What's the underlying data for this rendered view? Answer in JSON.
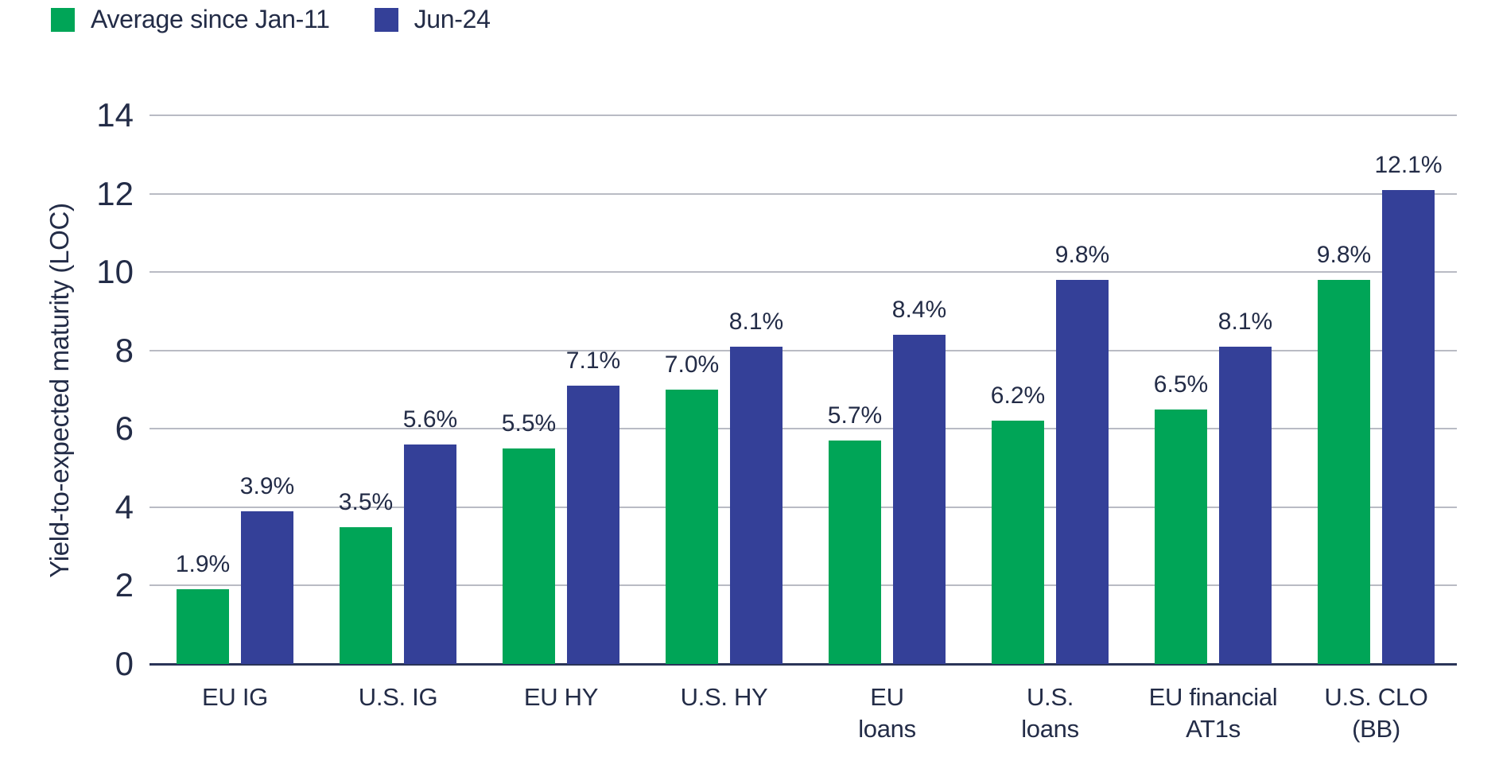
{
  "colors": {
    "series_green": "#00A557",
    "series_blue": "#344098",
    "text": "#232C47",
    "gridline": "#B9BBC4",
    "axis_baseline": "#2A3458",
    "background": "#FFFFFF"
  },
  "chart_data": {
    "type": "bar",
    "title": "",
    "xlabel": "",
    "ylabel": "Yield-to-expected maturity (LOC)",
    "ylim": [
      0,
      14
    ],
    "yticks": [
      0,
      2,
      4,
      6,
      8,
      10,
      12,
      14
    ],
    "grid": "horizontal",
    "legend_position": "top-left",
    "categories": [
      "EU IG",
      "U.S. IG",
      "EU HY",
      "U.S. HY",
      "EU\nloans",
      "U.S.\nloans",
      "EU financial\nAT1s",
      "U.S. CLO\n(BB)"
    ],
    "series": [
      {
        "name": "Average since Jan-11",
        "color": "#00A557",
        "values": [
          1.9,
          3.5,
          5.5,
          7.0,
          5.7,
          6.2,
          6.5,
          9.8
        ],
        "labels": [
          "1.9%",
          "3.5%",
          "5.5%",
          "7.0%",
          "5.7%",
          "6.2%",
          "6.5%",
          "9.8%"
        ]
      },
      {
        "name": "Jun-24",
        "color": "#344098",
        "values": [
          3.9,
          5.6,
          7.1,
          8.1,
          8.4,
          9.8,
          8.1,
          12.1
        ],
        "labels": [
          "3.9%",
          "5.6%",
          "7.1%",
          "8.1%",
          "8.4%",
          "9.8%",
          "8.1%",
          "12.1%"
        ]
      }
    ]
  }
}
